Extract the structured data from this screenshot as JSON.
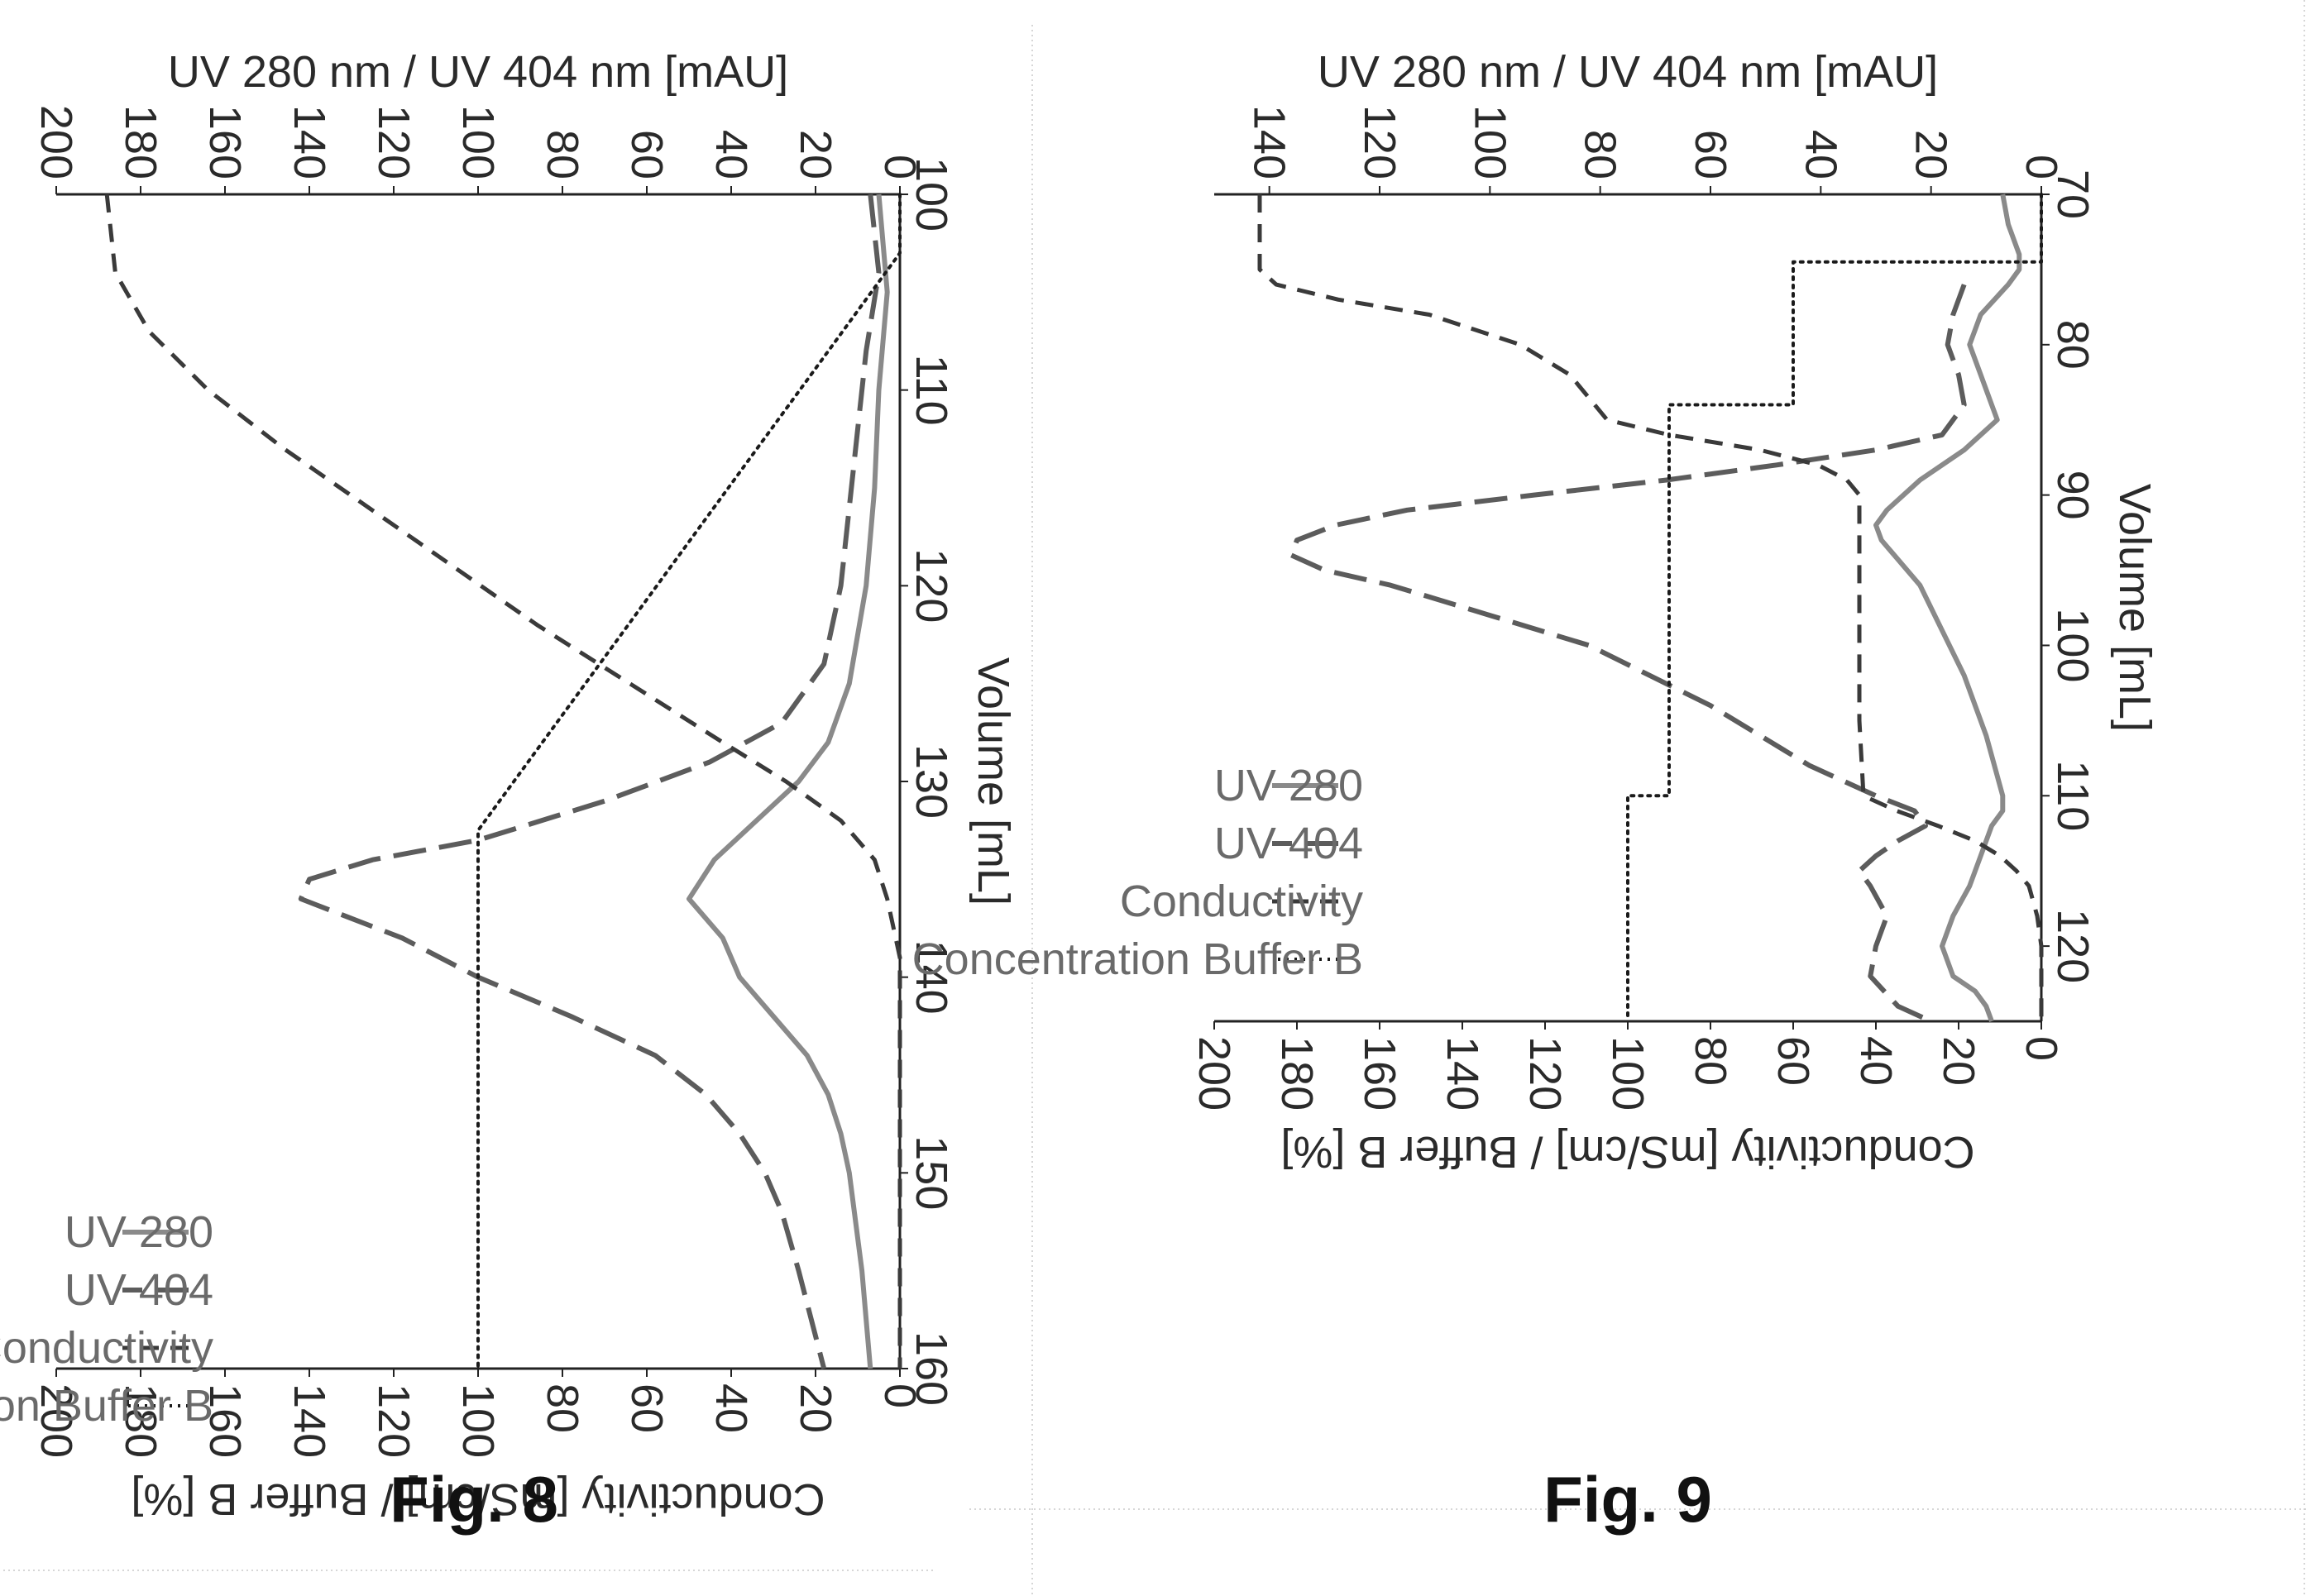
{
  "charts": [
    {
      "id": "fig8",
      "fig_label": "Fig. 8",
      "y_left_title": "UV 280 nm / UV 404 nm [mAU]",
      "y_right_title": "Conductivity [mS/cm] / Buffer B [%]",
      "x_title": "Volume [mL]",
      "legend": [
        "UV 280",
        "UV 404",
        "Conductivity",
        "Concentration Buffer B"
      ],
      "x_ticks": [
        "100",
        "110",
        "120",
        "130",
        "140",
        "150",
        "160"
      ],
      "y_left_ticks": [
        "0",
        "20",
        "40",
        "60",
        "80",
        "100",
        "120",
        "140",
        "160",
        "180",
        "200"
      ],
      "y_right_ticks": [
        "0",
        "20",
        "40",
        "60",
        "80",
        "100",
        "120",
        "140",
        "160",
        "180",
        "200"
      ]
    },
    {
      "id": "fig9",
      "fig_label": "Fig. 9",
      "y_left_title": "UV 280 nm / UV 404 nm [mAU]",
      "y_right_title": "Conductivity [mS/cm] / Buffer B [%]",
      "x_title": "Volume [mL]",
      "legend": [
        "UV 280",
        "UV 404",
        "Conductivity",
        "Concentration Buffer B"
      ],
      "x_ticks": [
        "70",
        "80",
        "90",
        "100",
        "110",
        "120"
      ],
      "y_left_ticks": [
        "0",
        "20",
        "40",
        "60",
        "80",
        "100",
        "120",
        "140"
      ],
      "y_right_ticks": [
        "0",
        "20",
        "40",
        "60",
        "80",
        "100",
        "120",
        "140",
        "160",
        "180",
        "200"
      ]
    }
  ],
  "chart_data": [
    {
      "type": "line",
      "title": "Fig. 8",
      "xlabel": "Volume [mL]",
      "ylabel": "UV 280 nm / UV 404 nm [mAU]",
      "y2label": "Conductivity [mS/cm] / Buffer B [%]",
      "xlim": [
        100,
        160
      ],
      "ylim": [
        0,
        200
      ],
      "y2lim": [
        0,
        200
      ],
      "legend_position": "right",
      "series": [
        {
          "name": "UV 280",
          "axis": "left",
          "style": "solid",
          "color": "#8a8a8a",
          "x": [
            100,
            105,
            110,
            115,
            120,
            125,
            128,
            130,
            132,
            134,
            136,
            138,
            140,
            142,
            144,
            146,
            148,
            150,
            155,
            160
          ],
          "y": [
            5,
            3,
            5,
            6,
            8,
            12,
            17,
            24,
            34,
            44,
            50,
            42,
            38,
            30,
            22,
            17,
            14,
            12,
            9,
            7
          ]
        },
        {
          "name": "UV 404",
          "axis": "left",
          "style": "longdash",
          "color": "#5c5c5c",
          "x": [
            100,
            104,
            108,
            112,
            116,
            120,
            124,
            127,
            129,
            131,
            133,
            134,
            135,
            136,
            137,
            138,
            140,
            142,
            144,
            146,
            148,
            150,
            152,
            155,
            160
          ],
          "y": [
            7,
            5,
            8,
            10,
            12,
            14,
            18,
            28,
            45,
            70,
            100,
            125,
            140,
            142,
            130,
            118,
            100,
            78,
            58,
            46,
            38,
            32,
            28,
            24,
            18
          ]
        },
        {
          "name": "Conductivity",
          "axis": "right",
          "style": "dash",
          "color": "#3a3a3a",
          "x": [
            100,
            104,
            107,
            110,
            113,
            116,
            119,
            122,
            125,
            128,
            130,
            132,
            134,
            136,
            137,
            138,
            139,
            140,
            145,
            150,
            155,
            160
          ],
          "y": [
            188,
            186,
            178,
            164,
            146,
            126,
            106,
            86,
            64,
            42,
            27,
            14,
            6,
            3,
            2,
            1,
            0,
            0,
            0,
            0,
            0,
            0
          ]
        },
        {
          "name": "Concentration Buffer B",
          "axis": "right",
          "style": "dotted",
          "color": "#1a1a1a",
          "x": [
            100,
            103,
            132.5,
            160
          ],
          "y": [
            0,
            0,
            100,
            100
          ]
        }
      ]
    },
    {
      "type": "line",
      "title": "Fig. 9",
      "xlabel": "Volume [mL]",
      "ylabel": "UV 280 nm / UV 404 nm [mAU]",
      "y2label": "Conductivity [mS/cm] / Buffer B [%]",
      "xlim": [
        70,
        125
      ],
      "ylim": [
        0,
        150
      ],
      "y2lim": [
        0,
        200
      ],
      "legend_position": "right",
      "series": [
        {
          "name": "UV 280",
          "axis": "left",
          "style": "solid",
          "color": "#8a8a8a",
          "x": [
            70,
            72,
            74,
            75,
            76,
            78,
            80,
            82,
            84,
            85,
            86,
            87,
            89,
            91,
            92,
            93,
            96,
            99,
            102,
            106,
            110,
            111,
            112,
            114,
            116,
            118,
            120,
            122,
            123,
            124,
            125
          ],
          "y": [
            7,
            6,
            4,
            4,
            6,
            11,
            13,
            11,
            9,
            8,
            11,
            14,
            22,
            28,
            30,
            29,
            22,
            18,
            14,
            10,
            7,
            7,
            9,
            11,
            13,
            16,
            18,
            16,
            12,
            10,
            9
          ]
        },
        {
          "name": "UV 404",
          "axis": "left",
          "style": "longdash",
          "color": "#5c5c5c",
          "x": [
            76,
            78,
            80,
            82,
            84,
            86,
            87,
            88,
            89,
            90,
            91,
            92,
            93,
            94,
            95,
            96,
            98,
            100,
            104,
            108,
            110,
            111,
            112,
            113,
            114,
            115,
            116,
            118,
            120,
            122,
            124,
            125
          ],
          "y": [
            14,
            16,
            17,
            15,
            14,
            18,
            30,
            48,
            68,
            92,
            115,
            128,
            135,
            136,
            130,
            118,
            100,
            82,
            60,
            42,
            30,
            23,
            21,
            26,
            30,
            33,
            31,
            28,
            30,
            31,
            26,
            20
          ]
        },
        {
          "name": "Conductivity",
          "axis": "right",
          "style": "dash",
          "color": "#3a3a3a",
          "x": [
            70,
            72,
            74,
            75,
            76,
            77,
            78,
            80,
            82,
            84,
            85,
            86,
            87,
            88,
            89,
            90,
            95,
            100,
            105,
            110,
            111,
            112,
            113,
            114,
            115,
            116,
            118,
            120,
            122,
            125
          ],
          "y": [
            189,
            189,
            189,
            189,
            185,
            170,
            148,
            126,
            114,
            108,
            105,
            90,
            68,
            54,
            47,
            44,
            44,
            44,
            44,
            43,
            35,
            25,
            16,
            10,
            6,
            3,
            1,
            0,
            0,
            0
          ]
        },
        {
          "name": "Concentration Buffer B",
          "axis": "right",
          "style": "dotted",
          "color": "#1a1a1a",
          "x": [
            70,
            74.5,
            74.5,
            84,
            84,
            110,
            110,
            125
          ],
          "y": [
            0,
            0,
            60,
            60,
            90,
            90,
            100,
            100
          ]
        }
      ]
    }
  ]
}
